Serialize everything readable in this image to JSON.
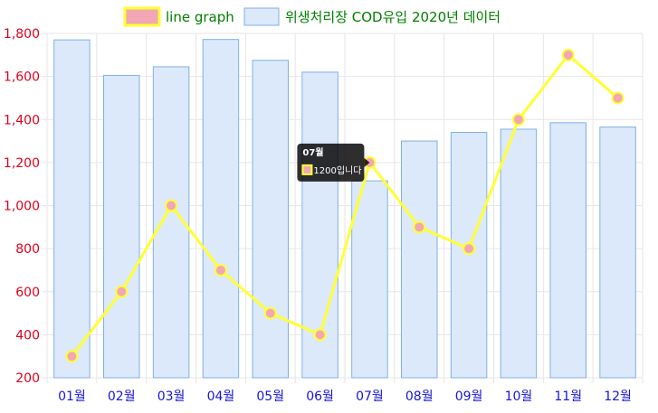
{
  "chart_data": {
    "type": "bar",
    "categories": [
      "01월",
      "02월",
      "03월",
      "04월",
      "05월",
      "06월",
      "07월",
      "08월",
      "09월",
      "10월",
      "11월",
      "12월"
    ],
    "series": [
      {
        "name": "line graph",
        "type": "line",
        "values": [
          300,
          600,
          1000,
          700,
          500,
          400,
          1200,
          900,
          800,
          1400,
          1700,
          1500
        ],
        "color": "#ffff33",
        "point_fill": "#f2a7b5"
      },
      {
        "name": "위생처리장 COD유입 2020년 데이터",
        "type": "bar",
        "values": [
          1770,
          1605,
          1645,
          1772,
          1675,
          1620,
          1115,
          1300,
          1340,
          1355,
          1385,
          1365
        ],
        "color": "#dce9fa",
        "border": "#7fb0e6"
      }
    ],
    "ylim": [
      200,
      1800
    ],
    "yticks": [
      "200",
      "400",
      "600",
      "800",
      "1,000",
      "1,200",
      "1,400",
      "1,600",
      "1,800"
    ],
    "ytick_values": [
      200,
      400,
      600,
      800,
      1000,
      1200,
      1400,
      1600,
      1800
    ],
    "grid": true,
    "legend": "top-center",
    "tooltip": {
      "category_index": 6,
      "title": "07월",
      "body": "1200입니다"
    }
  }
}
